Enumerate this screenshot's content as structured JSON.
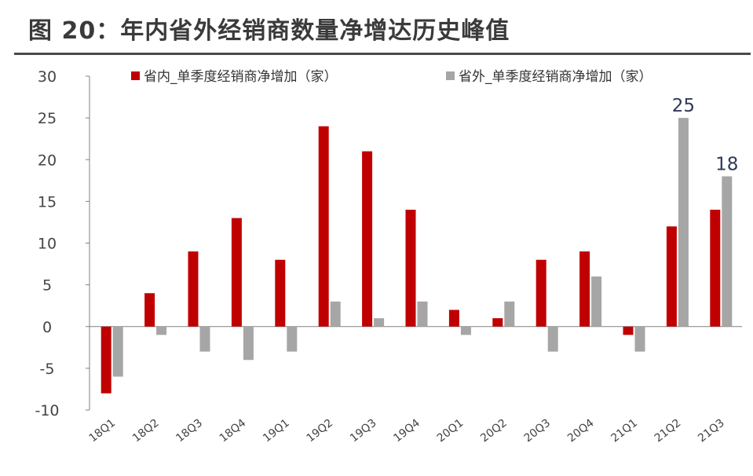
{
  "title": "图 20：年内省外经销商数量净增达历史峰值",
  "colors": {
    "inside": "#c00000",
    "outside": "#a6a6a6",
    "axis": "#808080",
    "title_rule": "#4a4a4a"
  },
  "chart_data": {
    "type": "bar",
    "categories": [
      "18Q1",
      "18Q2",
      "18Q3",
      "18Q4",
      "19Q1",
      "19Q2",
      "19Q3",
      "19Q4",
      "20Q1",
      "20Q2",
      "20Q3",
      "20Q4",
      "21Q1",
      "21Q2",
      "21Q3"
    ],
    "series": [
      {
        "name": "省内_单季度经销商净增加（家）",
        "values": [
          -8,
          4,
          9,
          13,
          8,
          24,
          21,
          14,
          2,
          1,
          8,
          9,
          -1,
          12,
          14
        ]
      },
      {
        "name": "省外_单季度经销商净增加（家）",
        "values": [
          -6,
          -1,
          -3,
          -4,
          -3,
          3,
          1,
          3,
          -1,
          3,
          -3,
          6,
          -3,
          25,
          18
        ]
      }
    ],
    "ylim": [
      -10,
      30
    ],
    "yticks": [
      -10,
      -5,
      0,
      5,
      10,
      15,
      20,
      25,
      30
    ],
    "legend_position": "top",
    "grid": false,
    "annotations": [
      {
        "series": 1,
        "category": "21Q2",
        "text": "25"
      },
      {
        "series": 1,
        "category": "21Q3",
        "text": "18"
      }
    ]
  }
}
